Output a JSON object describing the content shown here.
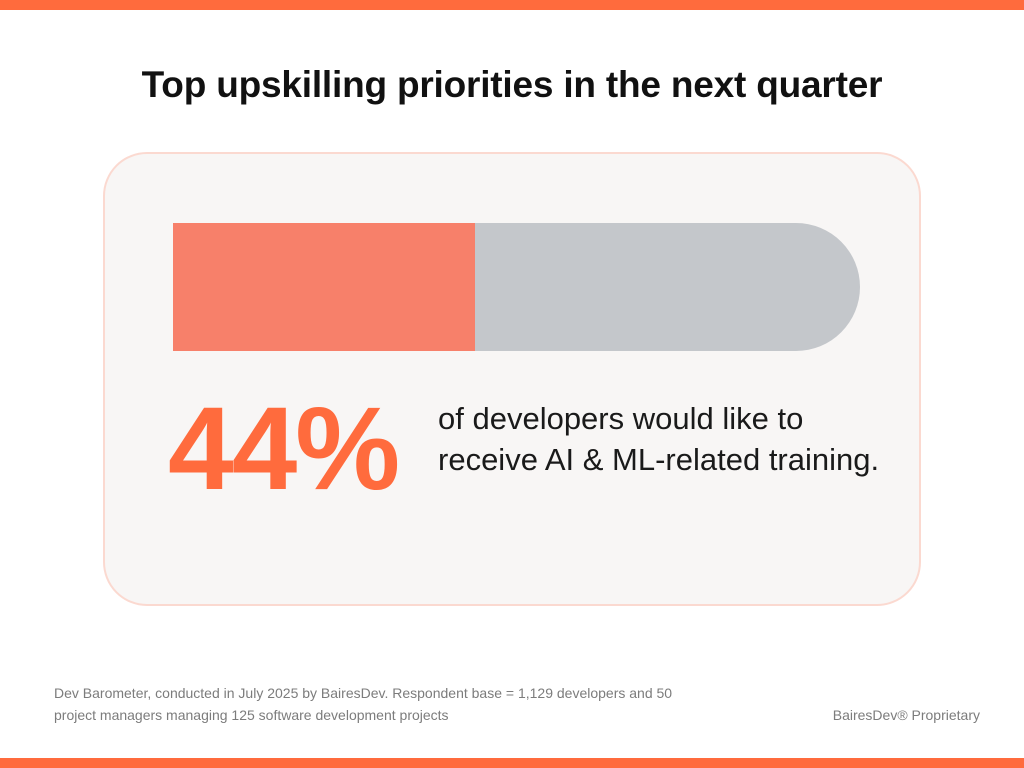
{
  "title": "Top upskilling priorities in the next quarter",
  "stat": {
    "value_label": "44%",
    "description": "of developers would like to receive AI & ML-related training."
  },
  "footer": {
    "source": "Dev Barometer, conducted in July 2025 by BairesDev. Respondent base = 1,129 developers and 50 project managers managing 125 software development projects",
    "brand": "BairesDev® Proprietary"
  },
  "colors": {
    "accent": "#ff6b3d",
    "bar_fill": "#f7806a",
    "bar_track": "#c4c7cb",
    "card_background": "#f8f6f5",
    "card_border": "#fbd9d0"
  },
  "chart_data": {
    "type": "bar",
    "orientation": "horizontal",
    "categories": [
      "Developers who would like AI & ML-related training"
    ],
    "values": [
      44
    ],
    "max": 100,
    "unit": "%"
  }
}
